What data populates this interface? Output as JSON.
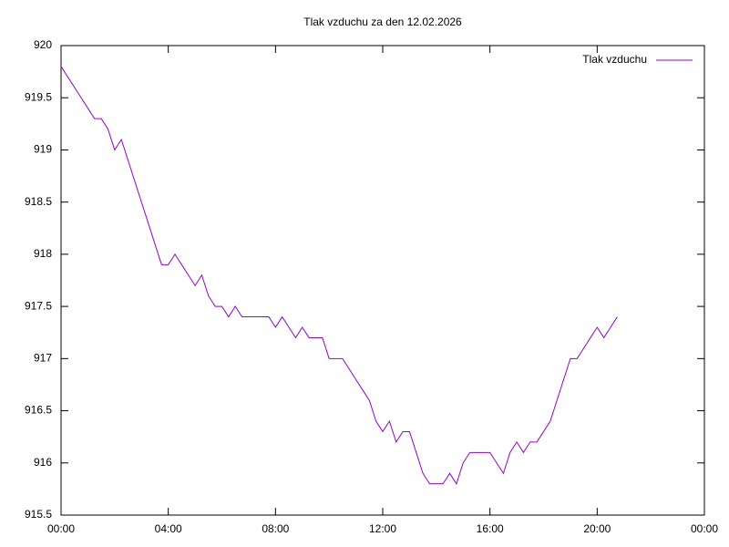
{
  "chart_data": {
    "type": "line",
    "title": "Tlak vzduchu za den 12.02.2026",
    "x": [
      0,
      0.25,
      0.5,
      0.75,
      1,
      1.25,
      1.5,
      1.75,
      2,
      2.25,
      2.5,
      2.75,
      3,
      3.25,
      3.5,
      3.75,
      4,
      4.25,
      4.5,
      4.75,
      5,
      5.25,
      5.5,
      5.75,
      6,
      6.25,
      6.5,
      6.75,
      7,
      7.25,
      7.5,
      7.75,
      8,
      8.25,
      8.5,
      8.75,
      9,
      9.25,
      9.5,
      9.75,
      10,
      10.25,
      10.5,
      10.75,
      11,
      11.25,
      11.5,
      11.75,
      12,
      12.25,
      12.5,
      12.75,
      13,
      13.25,
      13.5,
      13.75,
      14,
      14.25,
      14.5,
      14.75,
      15,
      15.25,
      15.5,
      15.75,
      16,
      16.25,
      16.5,
      16.75,
      17,
      17.25,
      17.5,
      17.75,
      18,
      18.25,
      18.5,
      18.75,
      19,
      19.25,
      19.5,
      19.75,
      20,
      20.25,
      20.5,
      20.75
    ],
    "series": [
      {
        "name": "Tlak vzduchu",
        "color": "#9400d3",
        "values": [
          919.8,
          919.7,
          919.6,
          919.5,
          919.4,
          919.3,
          919.3,
          919.2,
          919.0,
          919.1,
          918.9,
          918.7,
          918.5,
          918.3,
          918.1,
          917.9,
          917.9,
          918.0,
          917.9,
          917.8,
          917.7,
          917.8,
          917.6,
          917.5,
          917.5,
          917.4,
          917.5,
          917.4,
          917.4,
          917.4,
          917.4,
          917.4,
          917.3,
          917.4,
          917.3,
          917.2,
          917.3,
          917.2,
          917.2,
          917.2,
          917.0,
          917.0,
          917.0,
          916.9,
          916.8,
          916.7,
          916.6,
          916.4,
          916.3,
          916.4,
          916.2,
          916.3,
          916.3,
          916.1,
          915.9,
          915.8,
          915.8,
          915.8,
          915.9,
          915.8,
          916.0,
          916.1,
          916.1,
          916.1,
          916.1,
          916.0,
          915.9,
          916.1,
          916.2,
          916.1,
          916.2,
          916.2,
          916.3,
          916.4,
          916.6,
          916.8,
          917.0,
          917.0,
          917.1,
          917.2,
          917.3,
          917.2,
          917.3,
          917.4
        ]
      }
    ],
    "xlim": [
      0,
      24
    ],
    "xticks": [
      {
        "value": 0,
        "label": "00:00"
      },
      {
        "value": 4,
        "label": "04:00"
      },
      {
        "value": 8,
        "label": "08:00"
      },
      {
        "value": 12,
        "label": "12:00"
      },
      {
        "value": 16,
        "label": "16:00"
      },
      {
        "value": 20,
        "label": "20:00"
      },
      {
        "value": 24,
        "label": "00:00"
      }
    ],
    "ylim": [
      915.5,
      920
    ],
    "yticks": [
      915.5,
      916,
      916.5,
      917,
      917.5,
      918,
      918.5,
      919,
      919.5,
      920
    ],
    "legend": "upper right"
  }
}
